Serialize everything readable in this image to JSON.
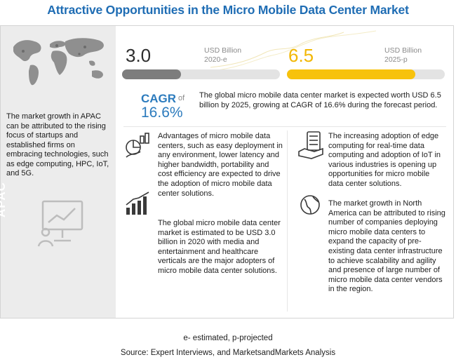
{
  "title": "Attractive Opportunities in the Micro Mobile Data Center Market",
  "left_panel": {
    "text": "The market growth in APAC can be attributed to the rising focus of startups and established firms on embracing technologies, such as edge computing, HPC, IoT, and 5G.",
    "region_label": "APAC"
  },
  "chart_data": {
    "type": "bar",
    "categories": [
      "2020-e",
      "2025-p"
    ],
    "values": [
      3.0,
      6.5
    ],
    "value_labels": [
      "3.0",
      "6.5"
    ],
    "units": [
      "USD Billion",
      "USD Billion"
    ],
    "colors": [
      "#7d7d7d",
      "#f7c20c"
    ],
    "ylim": [
      0,
      8
    ]
  },
  "cagr": {
    "label": "CAGR",
    "of": "of",
    "value": "16.6%",
    "description": "The global micro mobile data center market is expected worth USD 6.5 billion by 2025, growing at CAGR of 16.6% during the forecast period."
  },
  "highlights": [
    {
      "icon": "growth-chart-icon",
      "text": "Advantages of micro mobile data centers, such as easy deployment in any environment, lower latency and higher bandwidth, portability and cost efficiency are expected to drive the adoption of micro mobile data center solutions."
    },
    {
      "icon": "bar-chart-icon",
      "text": "The global micro mobile data center market is estimated to be USD 3.0 billion in 2020 with media and entertainment and healthcare verticals are the major adopters of micro mobile data center solutions."
    },
    {
      "icon": "server-hand-icon",
      "text": "The increasing adoption of edge computing for real-time data computing and adoption of IoT in various industries is opening up opportunities for micro mobile data center solutions."
    },
    {
      "icon": "globe-icon",
      "text": "The market growth in North America can be attributed to rising number of companies deploying micro mobile data centers to expand the capacity of pre-existing data center infrastructure to achieve scalability and agility and presence of large number of micro mobile data center vendors in the region."
    }
  ],
  "footer": {
    "legend": "e- estimated, p-projected",
    "source": "Source: Expert Interviews, and MarketsandMarkets Analysis"
  }
}
